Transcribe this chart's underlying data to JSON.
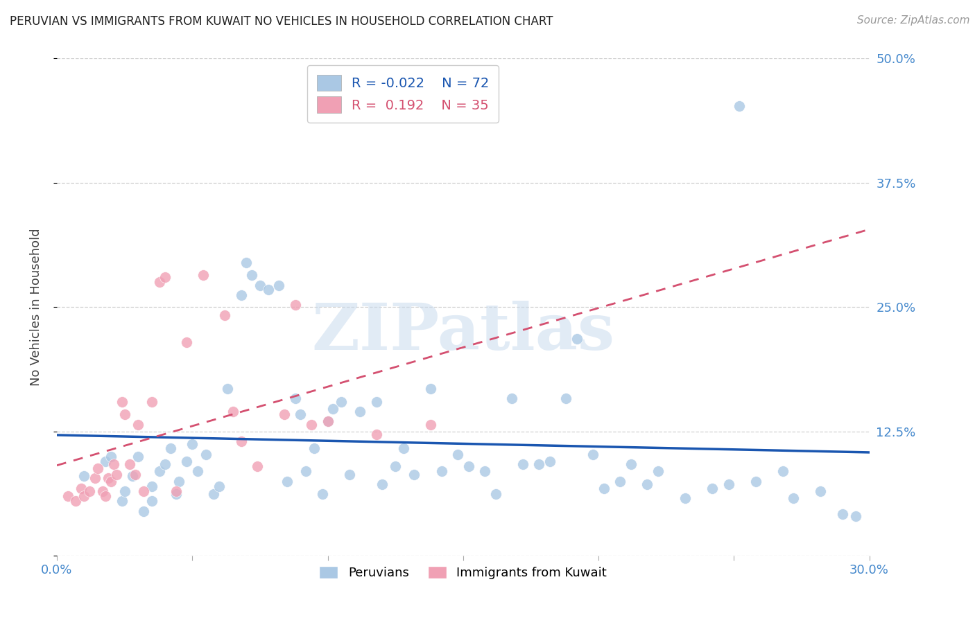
{
  "title": "PERUVIAN VS IMMIGRANTS FROM KUWAIT NO VEHICLES IN HOUSEHOLD CORRELATION CHART",
  "source": "Source: ZipAtlas.com",
  "ylabel": "No Vehicles in Household",
  "xlim": [
    0.0,
    0.3
  ],
  "ylim": [
    0.0,
    0.5
  ],
  "xticks": [
    0.0,
    0.05,
    0.1,
    0.15,
    0.2,
    0.25,
    0.3
  ],
  "yticks": [
    0.0,
    0.125,
    0.25,
    0.375,
    0.5
  ],
  "blue_R": -0.022,
  "blue_N": 72,
  "pink_R": 0.192,
  "pink_N": 35,
  "watermark": "ZIPatlas",
  "blue_color": "#aac8e4",
  "pink_color": "#f0a0b4",
  "blue_line_color": "#1a56b0",
  "pink_line_color": "#d45070",
  "axis_color": "#4488cc",
  "bg_color": "#ffffff",
  "blue_x": [
    0.01,
    0.018,
    0.02,
    0.024,
    0.025,
    0.028,
    0.03,
    0.032,
    0.035,
    0.035,
    0.038,
    0.04,
    0.042,
    0.044,
    0.045,
    0.048,
    0.05,
    0.052,
    0.055,
    0.058,
    0.06,
    0.063,
    0.068,
    0.07,
    0.072,
    0.075,
    0.078,
    0.082,
    0.085,
    0.088,
    0.09,
    0.092,
    0.095,
    0.098,
    0.1,
    0.102,
    0.105,
    0.108,
    0.112,
    0.118,
    0.12,
    0.125,
    0.128,
    0.132,
    0.138,
    0.142,
    0.148,
    0.152,
    0.158,
    0.162,
    0.168,
    0.172,
    0.178,
    0.182,
    0.188,
    0.192,
    0.198,
    0.202,
    0.208,
    0.212,
    0.218,
    0.222,
    0.232,
    0.242,
    0.248,
    0.252,
    0.258,
    0.268,
    0.272,
    0.282,
    0.29,
    0.295
  ],
  "blue_y": [
    0.08,
    0.095,
    0.1,
    0.055,
    0.065,
    0.08,
    0.1,
    0.045,
    0.055,
    0.07,
    0.085,
    0.092,
    0.108,
    0.062,
    0.075,
    0.095,
    0.112,
    0.085,
    0.102,
    0.062,
    0.07,
    0.168,
    0.262,
    0.295,
    0.282,
    0.272,
    0.268,
    0.272,
    0.075,
    0.158,
    0.142,
    0.085,
    0.108,
    0.062,
    0.135,
    0.148,
    0.155,
    0.082,
    0.145,
    0.155,
    0.072,
    0.09,
    0.108,
    0.082,
    0.168,
    0.085,
    0.102,
    0.09,
    0.085,
    0.062,
    0.158,
    0.092,
    0.092,
    0.095,
    0.158,
    0.218,
    0.102,
    0.068,
    0.075,
    0.092,
    0.072,
    0.085,
    0.058,
    0.068,
    0.072,
    0.452,
    0.075,
    0.085,
    0.058,
    0.065,
    0.042,
    0.04
  ],
  "pink_x": [
    0.004,
    0.007,
    0.009,
    0.01,
    0.012,
    0.014,
    0.015,
    0.017,
    0.018,
    0.019,
    0.02,
    0.021,
    0.022,
    0.024,
    0.025,
    0.027,
    0.029,
    0.03,
    0.032,
    0.035,
    0.038,
    0.04,
    0.044,
    0.048,
    0.054,
    0.062,
    0.065,
    0.068,
    0.074,
    0.084,
    0.088,
    0.094,
    0.1,
    0.118,
    0.138
  ],
  "pink_y": [
    0.06,
    0.055,
    0.068,
    0.06,
    0.065,
    0.078,
    0.088,
    0.065,
    0.06,
    0.078,
    0.075,
    0.092,
    0.082,
    0.155,
    0.142,
    0.092,
    0.082,
    0.132,
    0.065,
    0.155,
    0.275,
    0.28,
    0.065,
    0.215,
    0.282,
    0.242,
    0.145,
    0.115,
    0.09,
    0.142,
    0.252,
    0.132,
    0.135,
    0.122,
    0.132
  ]
}
